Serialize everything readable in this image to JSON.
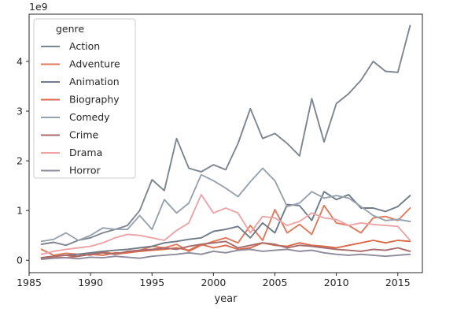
{
  "chart_data": {
    "type": "line",
    "title": "",
    "xlabel": "year",
    "ylabel": "",
    "y_offset_text": "1e9",
    "xlim": [
      1985,
      2017
    ],
    "ylim": [
      -0.25,
      4.95
    ],
    "x_ticks": [
      1985,
      1990,
      1995,
      2000,
      2005,
      2010,
      2015
    ],
    "y_ticks": [
      0,
      1,
      2,
      3,
      4
    ],
    "grid": false,
    "legend": {
      "title": "genre",
      "position": "top-left"
    },
    "x": [
      1986,
      1987,
      1988,
      1989,
      1990,
      1991,
      1992,
      1993,
      1994,
      1995,
      1996,
      1997,
      1998,
      1999,
      2000,
      2001,
      2002,
      2003,
      2004,
      2005,
      2006,
      2007,
      2008,
      2009,
      2010,
      2011,
      2012,
      2013,
      2014,
      2015,
      2016
    ],
    "series": [
      {
        "name": "Action",
        "color": "#7d8591",
        "values": [
          0.32,
          0.36,
          0.3,
          0.4,
          0.45,
          0.55,
          0.62,
          0.7,
          1.0,
          1.62,
          1.4,
          2.45,
          1.85,
          1.78,
          1.92,
          1.82,
          2.35,
          3.05,
          2.45,
          2.55,
          2.35,
          2.1,
          3.25,
          2.38,
          3.15,
          3.35,
          3.62,
          4.0,
          3.8,
          3.78,
          4.72
        ]
      },
      {
        "name": "Adventure",
        "color": "#e07a5c",
        "values": [
          0.22,
          0.1,
          0.14,
          0.12,
          0.1,
          0.18,
          0.12,
          0.15,
          0.2,
          0.28,
          0.25,
          0.32,
          0.18,
          0.3,
          0.38,
          0.45,
          0.35,
          0.7,
          0.4,
          1.02,
          0.55,
          0.72,
          0.52,
          1.1,
          0.75,
          0.7,
          0.55,
          0.85,
          0.88,
          0.8,
          1.05
        ]
      },
      {
        "name": "Animation",
        "color": "#6f7b86",
        "values": [
          0.05,
          0.08,
          0.1,
          0.12,
          0.15,
          0.18,
          0.2,
          0.22,
          0.25,
          0.28,
          0.35,
          0.38,
          0.42,
          0.45,
          0.58,
          0.62,
          0.68,
          0.45,
          0.75,
          0.55,
          1.12,
          1.1,
          0.8,
          1.38,
          1.22,
          1.32,
          1.05,
          1.05,
          0.98,
          1.08,
          1.3
        ]
      },
      {
        "name": "Biography",
        "color": "#d9694a",
        "values": [
          0.05,
          0.06,
          0.05,
          0.08,
          0.12,
          0.1,
          0.15,
          0.15,
          0.18,
          0.2,
          0.22,
          0.25,
          0.2,
          0.32,
          0.25,
          0.3,
          0.22,
          0.25,
          0.35,
          0.3,
          0.28,
          0.35,
          0.3,
          0.28,
          0.25,
          0.3,
          0.35,
          0.4,
          0.35,
          0.4,
          0.38
        ]
      },
      {
        "name": "Comedy",
        "color": "#98a2ad",
        "values": [
          0.38,
          0.42,
          0.55,
          0.4,
          0.5,
          0.65,
          0.62,
          0.62,
          0.9,
          0.62,
          1.22,
          0.95,
          1.15,
          1.72,
          1.6,
          1.45,
          1.28,
          1.58,
          1.85,
          1.6,
          1.08,
          1.15,
          1.38,
          1.25,
          1.3,
          1.25,
          1.08,
          0.9,
          0.8,
          0.82,
          0.78
        ]
      },
      {
        "name": "Crime",
        "color": "#a86a6a",
        "values": [
          0.05,
          0.08,
          0.1,
          0.08,
          0.12,
          0.15,
          0.12,
          0.18,
          0.2,
          0.22,
          0.25,
          0.22,
          0.28,
          0.32,
          0.35,
          0.38,
          0.25,
          0.3,
          0.35,
          0.32,
          0.25,
          0.3,
          0.28,
          0.25,
          0.22,
          0.2,
          0.18,
          0.22,
          0.2,
          0.25,
          0.18
        ]
      },
      {
        "name": "Drama",
        "color": "#eba4a8",
        "values": [
          0.12,
          0.18,
          0.22,
          0.25,
          0.28,
          0.35,
          0.45,
          0.52,
          0.5,
          0.45,
          0.4,
          0.6,
          0.75,
          1.32,
          0.95,
          1.05,
          0.95,
          0.55,
          0.88,
          0.85,
          0.7,
          0.78,
          0.95,
          0.85,
          0.82,
          0.7,
          0.75,
          0.72,
          0.7,
          0.68,
          0.4
        ]
      },
      {
        "name": "Horror",
        "color": "#8f8a9b",
        "values": [
          0.02,
          0.04,
          0.05,
          0.03,
          0.06,
          0.05,
          0.08,
          0.06,
          0.04,
          0.08,
          0.1,
          0.12,
          0.15,
          0.12,
          0.18,
          0.15,
          0.2,
          0.22,
          0.18,
          0.2,
          0.22,
          0.18,
          0.2,
          0.15,
          0.12,
          0.1,
          0.12,
          0.1,
          0.08,
          0.1,
          0.12
        ]
      }
    ]
  }
}
